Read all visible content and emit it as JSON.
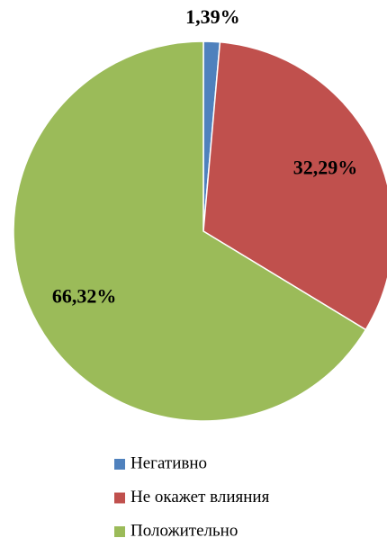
{
  "chart_data": {
    "type": "pie",
    "categories": [
      "Негативно",
      "Не окажет влияния",
      "Положительно"
    ],
    "values": [
      1.39,
      32.29,
      66.32
    ],
    "value_labels": [
      "1,39%",
      "32,29%",
      "66,32%"
    ],
    "colors": [
      "#4f81bd",
      "#c0504d",
      "#9bbb59"
    ],
    "legend": "bottom"
  }
}
